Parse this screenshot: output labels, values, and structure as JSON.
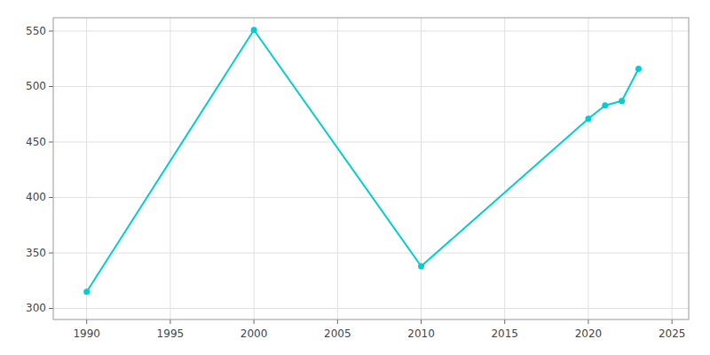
{
  "chart_data": {
    "type": "line",
    "x": [
      1990,
      2000,
      2010,
      2020,
      2021,
      2022,
      2023
    ],
    "values": [
      315,
      551,
      338,
      471,
      483,
      487,
      516
    ],
    "color": "#00CED1",
    "marker": "circle",
    "xlim": [
      1988,
      2026
    ],
    "ylim": [
      290,
      562
    ],
    "xticks": [
      1990,
      1995,
      2000,
      2005,
      2010,
      2015,
      2020,
      2025
    ],
    "yticks": [
      300,
      350,
      400,
      450,
      500,
      550
    ],
    "grid": true
  }
}
